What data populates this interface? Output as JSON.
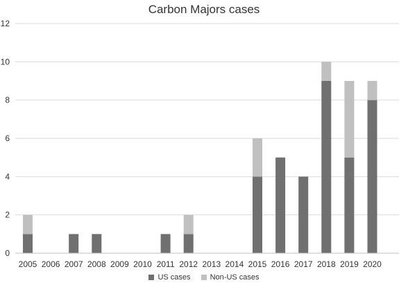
{
  "chart_data": {
    "type": "bar",
    "stacked": true,
    "title": "Carbon Majors cases",
    "categories": [
      "2005",
      "2006",
      "2007",
      "2008",
      "2009",
      "2010",
      "2011",
      "2012",
      "2013",
      "2014",
      "2015",
      "2016",
      "2017",
      "2018",
      "2019",
      "2020"
    ],
    "series": [
      {
        "name": "US cases",
        "color": "#707070",
        "values": [
          1,
          0,
          1,
          1,
          0,
          0,
          1,
          1,
          0,
          0,
          4,
          5,
          4,
          9,
          5,
          8
        ]
      },
      {
        "name": "Non-US cases",
        "color": "#c0c0c0",
        "values": [
          1,
          0,
          0,
          0,
          0,
          0,
          0,
          1,
          0,
          0,
          2,
          0,
          0,
          1,
          4,
          1
        ]
      }
    ],
    "ylim": [
      0,
      12
    ],
    "yticks": [
      0,
      2,
      4,
      6,
      8,
      10,
      12
    ],
    "grid": true,
    "legend_position": "bottom"
  }
}
